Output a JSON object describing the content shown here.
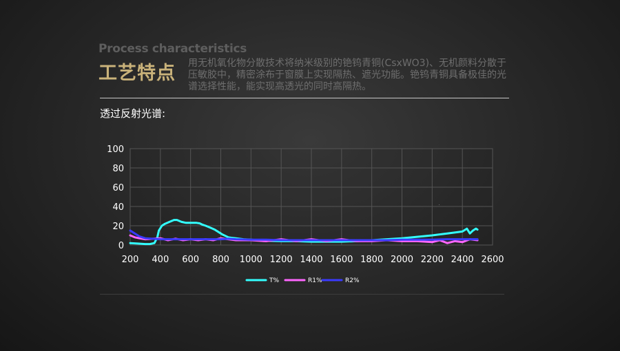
{
  "header": {
    "eyebrow": "Process characteristics",
    "title": "工艺特点",
    "description": "用无机氧化物分散技术将纳米级别的铯钨青铜(CsxWO3)、无机颜料分散于压敏胶中，精密涂布于窗膜上实现隔热、遮光功能。铯钨青铜具备极佳的光谱选择性能，能实现高透光的同时高隔热。"
  },
  "section": {
    "subtitle": "透过反射光谱:"
  },
  "chart_data": {
    "type": "line",
    "title": "",
    "xlabel": "",
    "ylabel": "",
    "xlim": [
      200,
      2600
    ],
    "ylim": [
      0,
      100
    ],
    "x_ticks": [
      200,
      400,
      600,
      800,
      1000,
      1200,
      1400,
      1600,
      1800,
      2000,
      2200,
      2400,
      2600
    ],
    "y_ticks": [
      0,
      20,
      40,
      60,
      80,
      100
    ],
    "grid": true,
    "legend_position": "bottom-center",
    "series": [
      {
        "name": "T%",
        "color": "#33ffff",
        "points": [
          [
            200,
            2
          ],
          [
            250,
            1.5
          ],
          [
            300,
            1
          ],
          [
            330,
            1
          ],
          [
            360,
            2
          ],
          [
            380,
            8
          ],
          [
            390,
            15
          ],
          [
            410,
            20
          ],
          [
            430,
            22
          ],
          [
            460,
            24
          ],
          [
            490,
            26
          ],
          [
            510,
            26
          ],
          [
            540,
            24
          ],
          [
            570,
            23
          ],
          [
            600,
            23
          ],
          [
            620,
            23
          ],
          [
            640,
            23
          ],
          [
            660,
            22.5
          ],
          [
            680,
            21
          ],
          [
            700,
            20
          ],
          [
            730,
            18
          ],
          [
            760,
            16
          ],
          [
            790,
            13
          ],
          [
            810,
            11
          ],
          [
            830,
            9.5
          ],
          [
            850,
            8
          ],
          [
            870,
            7.5
          ],
          [
            900,
            7
          ],
          [
            950,
            6
          ],
          [
            1000,
            5.5
          ],
          [
            1100,
            4.5
          ],
          [
            1200,
            4
          ],
          [
            1300,
            4
          ],
          [
            1400,
            3.5
          ],
          [
            1500,
            3.5
          ],
          [
            1600,
            3.5
          ],
          [
            1700,
            4
          ],
          [
            1800,
            5
          ],
          [
            1900,
            6
          ],
          [
            2000,
            7
          ],
          [
            2100,
            8.5
          ],
          [
            2200,
            10
          ],
          [
            2300,
            12
          ],
          [
            2400,
            14
          ],
          [
            2430,
            17
          ],
          [
            2450,
            12
          ],
          [
            2470,
            15
          ],
          [
            2490,
            17
          ],
          [
            2500,
            16
          ]
        ]
      },
      {
        "name": "R1%",
        "color": "#ff66ff",
        "points": [
          [
            200,
            10
          ],
          [
            230,
            8
          ],
          [
            260,
            7
          ],
          [
            300,
            6
          ],
          [
            350,
            6.5
          ],
          [
            400,
            7
          ],
          [
            450,
            5
          ],
          [
            500,
            6.5
          ],
          [
            550,
            5
          ],
          [
            600,
            6
          ],
          [
            650,
            5
          ],
          [
            700,
            6
          ],
          [
            750,
            5
          ],
          [
            800,
            7
          ],
          [
            850,
            6
          ],
          [
            900,
            5
          ],
          [
            1000,
            5
          ],
          [
            1100,
            4
          ],
          [
            1200,
            6
          ],
          [
            1300,
            4
          ],
          [
            1400,
            6
          ],
          [
            1500,
            4
          ],
          [
            1600,
            6
          ],
          [
            1700,
            4
          ],
          [
            1800,
            4
          ],
          [
            1900,
            5
          ],
          [
            2000,
            4
          ],
          [
            2100,
            4
          ],
          [
            2200,
            3
          ],
          [
            2250,
            5
          ],
          [
            2300,
            2
          ],
          [
            2350,
            4
          ],
          [
            2400,
            3
          ],
          [
            2450,
            6
          ],
          [
            2500,
            5
          ]
        ]
      },
      {
        "name": "R2%",
        "color": "#3a3aff",
        "points": [
          [
            200,
            15
          ],
          [
            230,
            12
          ],
          [
            260,
            9
          ],
          [
            300,
            7
          ],
          [
            350,
            6.5
          ],
          [
            400,
            6
          ],
          [
            500,
            6
          ],
          [
            600,
            6
          ],
          [
            700,
            6
          ],
          [
            800,
            6
          ],
          [
            850,
            6.5
          ],
          [
            900,
            6
          ],
          [
            1000,
            5.5
          ],
          [
            1100,
            5.5
          ],
          [
            1200,
            5
          ],
          [
            1300,
            5
          ],
          [
            1400,
            5
          ],
          [
            1500,
            5
          ],
          [
            1600,
            5
          ],
          [
            1700,
            5
          ],
          [
            1800,
            5
          ],
          [
            1900,
            5
          ],
          [
            2000,
            5.5
          ],
          [
            2100,
            5.5
          ],
          [
            2200,
            5.5
          ],
          [
            2300,
            6
          ],
          [
            2400,
            6
          ],
          [
            2500,
            6
          ]
        ]
      }
    ]
  }
}
